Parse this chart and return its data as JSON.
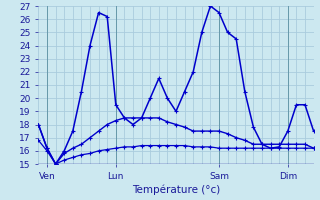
{
  "xlabel": "Température (°c)",
  "ylim": [
    15,
    27
  ],
  "yticks": [
    15,
    16,
    17,
    18,
    19,
    20,
    21,
    22,
    23,
    24,
    25,
    26,
    27
  ],
  "bg_color": "#cce8f0",
  "line_color": "#0000cc",
  "grid_color": "#aaccdd",
  "x_tick_labels": [
    "Ven",
    "Lun",
    "Sam",
    "Dim"
  ],
  "x_tick_positions": [
    1,
    9,
    21,
    29
  ],
  "num_points": 33,
  "line_high": [
    18.0,
    16.2,
    15.0,
    16.0,
    17.5,
    20.5,
    24.0,
    26.5,
    26.2,
    19.5,
    18.5,
    18.0,
    18.5,
    20.0,
    21.5,
    20.0,
    19.0,
    20.5,
    22.0,
    25.0,
    27.0,
    26.5,
    25.0,
    24.5,
    20.5,
    17.8,
    16.5,
    16.2,
    16.3,
    17.5,
    19.5,
    19.5,
    17.5
  ],
  "line_mid": [
    18.0,
    16.2,
    15.0,
    15.8,
    16.2,
    16.5,
    17.0,
    17.5,
    18.0,
    18.3,
    18.5,
    18.5,
    18.5,
    18.5,
    18.5,
    18.2,
    18.0,
    17.8,
    17.5,
    17.5,
    17.5,
    17.5,
    17.3,
    17.0,
    16.8,
    16.5,
    16.5,
    16.5,
    16.5,
    16.5,
    16.5,
    16.5,
    16.2
  ],
  "line_low": [
    16.8,
    16.0,
    15.0,
    15.3,
    15.5,
    15.7,
    15.8,
    16.0,
    16.1,
    16.2,
    16.3,
    16.3,
    16.4,
    16.4,
    16.4,
    16.4,
    16.4,
    16.4,
    16.3,
    16.3,
    16.3,
    16.2,
    16.2,
    16.2,
    16.2,
    16.2,
    16.2,
    16.2,
    16.2,
    16.2,
    16.2,
    16.2,
    16.2
  ]
}
